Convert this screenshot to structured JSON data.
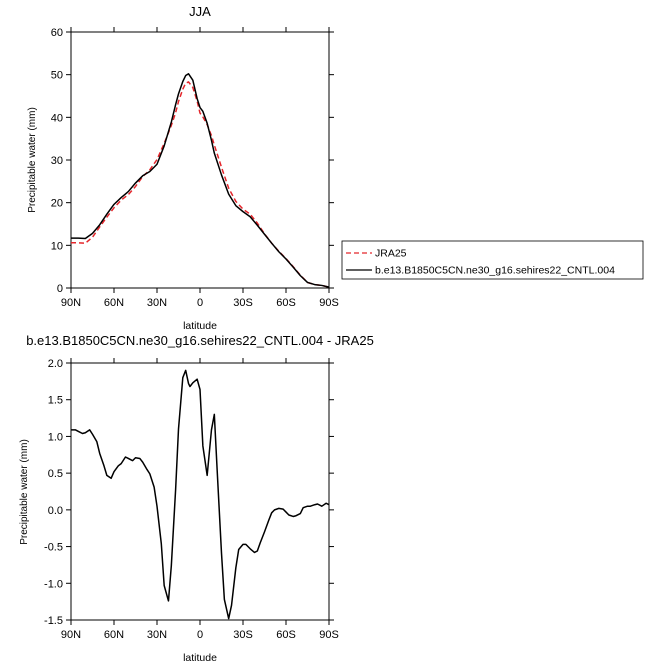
{
  "chart_data": [
    {
      "type": "line",
      "title": "JJA",
      "xlabel": "latitude",
      "ylabel": "Precipitable water (mm)",
      "xlim": [
        90,
        -90
      ],
      "ylim": [
        0,
        60
      ],
      "x_ticks": [
        90,
        60,
        30,
        0,
        -30,
        -60,
        -90
      ],
      "x_tick_labels": [
        "90N",
        "60N",
        "30N",
        "0",
        "30S",
        "60S",
        "90S"
      ],
      "y_ticks": [
        0,
        10,
        20,
        30,
        40,
        50,
        60
      ],
      "y_tick_labels": [
        "0",
        "10",
        "20",
        "30",
        "40",
        "50",
        "60"
      ],
      "legend_position": "right",
      "series": [
        {
          "name": "JRA25",
          "color": "#e4262b",
          "dash": "dashed",
          "x": [
            90,
            85,
            80,
            75,
            70,
            65,
            60,
            55,
            50,
            45,
            40,
            35,
            30,
            25,
            20,
            17,
            15,
            12,
            10,
            8,
            5,
            2,
            0,
            -2,
            -5,
            -8,
            -10,
            -15,
            -20,
            -25,
            -30,
            -35,
            -40,
            -45,
            -50,
            -55,
            -60,
            -65,
            -70,
            -75,
            -80,
            -85,
            -90
          ],
          "y": [
            10.6,
            10.6,
            10.5,
            11.9,
            14.3,
            16.6,
            18.8,
            20.6,
            21.9,
            23.8,
            26.1,
            27.7,
            30.1,
            33.9,
            38.1,
            41.1,
            43.7,
            46.6,
            48.0,
            48.3,
            47.0,
            43.8,
            41.0,
            40.1,
            38.3,
            35.7,
            33.5,
            28.3,
            23.4,
            20.3,
            18.5,
            17.3,
            15.2,
            12.7,
            10.5,
            8.6,
            6.9,
            5.0,
            3.0,
            1.3,
            0.8,
            0.6,
            0.2
          ]
        },
        {
          "name": "b.e13.B1850C5CN.ne30_g16.sehires22_CNTL.004",
          "color": "#000000",
          "dash": "solid",
          "x": [
            90,
            85,
            80,
            75,
            70,
            65,
            60,
            55,
            50,
            45,
            40,
            35,
            30,
            25,
            20,
            17,
            15,
            12,
            10,
            8,
            5,
            2,
            0,
            -2,
            -5,
            -8,
            -10,
            -15,
            -20,
            -25,
            -30,
            -35,
            -40,
            -45,
            -50,
            -55,
            -60,
            -65,
            -70,
            -75,
            -80,
            -85,
            -90
          ],
          "y": [
            11.7,
            11.7,
            11.6,
            12.8,
            14.8,
            17.3,
            19.6,
            21.2,
            22.6,
            24.6,
            26.3,
            27.3,
            29.0,
            33.3,
            38.9,
            43.0,
            45.5,
            48.4,
            49.8,
            50.2,
            48.7,
            44.4,
            42.3,
            41.4,
            38.6,
            34.6,
            31.6,
            26.5,
            22.0,
            19.3,
            17.9,
            16.7,
            14.7,
            12.6,
            10.5,
            8.5,
            6.8,
            4.9,
            2.9,
            1.3,
            0.8,
            0.6,
            0.2
          ]
        }
      ]
    },
    {
      "type": "line",
      "title": "b.e13.B1850C5CN.ne30_g16.sehires22_CNTL.004 - JRA25",
      "xlabel": "latitude",
      "ylabel": "Precipitable water (mm)",
      "xlim": [
        90,
        -90
      ],
      "ylim": [
        -1.5,
        2.0
      ],
      "x_ticks": [
        90,
        60,
        30,
        0,
        -30,
        -60,
        -90
      ],
      "x_tick_labels": [
        "90N",
        "60N",
        "30N",
        "0",
        "30S",
        "60S",
        "90S"
      ],
      "y_ticks": [
        -1.5,
        -1.0,
        -0.5,
        0.0,
        0.5,
        1.0,
        1.5,
        2.0
      ],
      "y_tick_labels": [
        "-1.5",
        "-1.0",
        "-0.5",
        "0.0",
        "0.5",
        "1.0",
        "1.5",
        "2.0"
      ],
      "series": [
        {
          "color": "#000000",
          "dash": "solid",
          "x": [
            90,
            87,
            85,
            82,
            80,
            77,
            75,
            72,
            70,
            67,
            65,
            62,
            60,
            57,
            55,
            52,
            50,
            47,
            45,
            42,
            40,
            37,
            35,
            32,
            30,
            27,
            25,
            22,
            20,
            17,
            15,
            12,
            10,
            8,
            7,
            5,
            2,
            0,
            -2,
            -5,
            -8,
            -10,
            -12,
            -15,
            -17,
            -20,
            -22,
            -25,
            -27,
            -30,
            -32,
            -35,
            -38,
            -40,
            -42,
            -45,
            -48,
            -50,
            -52,
            -55,
            -58,
            -60,
            -62,
            -65,
            -67,
            -70,
            -72,
            -75,
            -77,
            -80,
            -82,
            -85,
            -88,
            -90
          ],
          "y": [
            1.09,
            1.09,
            1.07,
            1.04,
            1.05,
            1.09,
            1.03,
            0.93,
            0.77,
            0.6,
            0.47,
            0.43,
            0.52,
            0.6,
            0.63,
            0.72,
            0.7,
            0.67,
            0.71,
            0.7,
            0.65,
            0.55,
            0.49,
            0.31,
            0.05,
            -0.46,
            -1.03,
            -1.24,
            -0.76,
            0.28,
            1.1,
            1.8,
            1.9,
            1.72,
            1.68,
            1.73,
            1.78,
            1.64,
            0.87,
            0.47,
            1.09,
            1.3,
            0.53,
            -0.59,
            -1.22,
            -1.48,
            -1.3,
            -0.79,
            -0.54,
            -0.47,
            -0.47,
            -0.53,
            -0.58,
            -0.56,
            -0.45,
            -0.3,
            -0.14,
            -0.04,
            0.0,
            0.02,
            0.01,
            -0.03,
            -0.07,
            -0.09,
            -0.08,
            -0.05,
            0.03,
            0.05,
            0.05,
            0.07,
            0.08,
            0.05,
            0.09,
            0.07
          ]
        }
      ]
    }
  ]
}
